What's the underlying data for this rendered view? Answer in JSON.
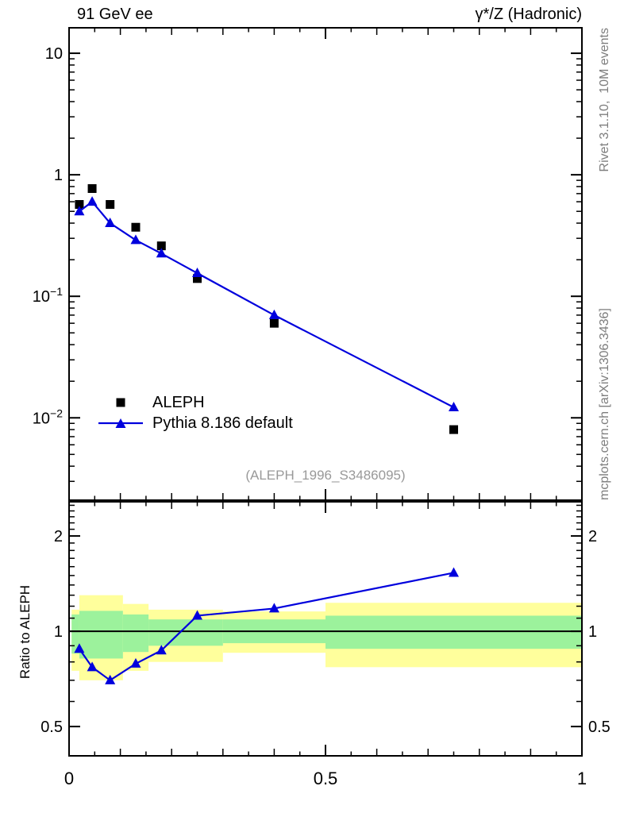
{
  "header": {
    "left_title": "91 GeV ee",
    "right_title": "γ*/Z (Hadronic)"
  },
  "side_notes": {
    "top": "Rivet 3.1.10,  10M events",
    "bottom": "mcplots.cern.ch [arXiv:1306.3436]"
  },
  "watermark": "(ALEPH_1996_S3486095)",
  "legend": {
    "items": [
      {
        "label": "ALEPH",
        "marker": "square",
        "color": "#000000"
      },
      {
        "label": "Pythia 8.186 default",
        "marker": "line-triangle",
        "color": "#0000dd"
      }
    ]
  },
  "ratio_panel": {
    "ylabel": "Ratio to ALEPH"
  },
  "colors": {
    "data": "#000000",
    "mc": "#0000dd",
    "band_outer": "#ffff9c",
    "band_inner": "#9cf29c",
    "reference_line": "#000000",
    "watermark": "#999999",
    "side_text": "#7d7d7d"
  },
  "chart_data": [
    {
      "type": "line",
      "panel": "main",
      "title": "91 GeV ee — γ*/Z (Hadronic)",
      "xlabel": "",
      "ylabel": "",
      "xlim": [
        0,
        1
      ],
      "ylim": [
        0.0021,
        16.2
      ],
      "yscale": "log",
      "grid": false,
      "legend_position": "lower-left",
      "x": [
        0.02,
        0.045,
        0.08,
        0.13,
        0.18,
        0.25,
        0.4,
        0.75
      ],
      "series": [
        {
          "name": "ALEPH",
          "marker": "square",
          "color": "#000000",
          "line": false,
          "values": [
            0.57,
            0.77,
            0.57,
            0.37,
            0.26,
            0.14,
            0.06,
            0.008
          ]
        },
        {
          "name": "Pythia 8.186 default",
          "marker": "triangle",
          "color": "#0000dd",
          "line": true,
          "values": [
            0.5,
            0.6,
            0.4,
            0.29,
            0.225,
            0.155,
            0.07,
            0.0122
          ]
        }
      ],
      "yticks_labeled": [
        10,
        1,
        0.1,
        0.01
      ],
      "xticks_labeled": [
        0,
        0.5,
        1
      ],
      "xtick_minor_step": 0.05
    },
    {
      "type": "ratio",
      "panel": "ratio",
      "ylabel": "Ratio to ALEPH",
      "xlim": [
        0,
        1
      ],
      "ylim": [
        0.404,
        2.565
      ],
      "yscale": "log",
      "reference_line": 1.0,
      "x": [
        0.02,
        0.045,
        0.08,
        0.13,
        0.18,
        0.25,
        0.4,
        0.75
      ],
      "series": [
        {
          "name": "Pythia 8.186 default / ALEPH",
          "marker": "triangle",
          "color": "#0000dd",
          "line": true,
          "values": [
            0.88,
            0.77,
            0.7,
            0.79,
            0.87,
            1.12,
            1.18,
            1.53
          ]
        }
      ],
      "bands": [
        {
          "x": [
            0.005,
            0.02
          ],
          "outer": [
            0.75,
            1.17
          ],
          "inner": [
            0.85,
            1.13
          ]
        },
        {
          "x": [
            0.02,
            0.105
          ],
          "outer": [
            0.7,
            1.3
          ],
          "inner": [
            0.82,
            1.16
          ]
        },
        {
          "x": [
            0.105,
            0.155
          ],
          "outer": [
            0.75,
            1.22
          ],
          "inner": [
            0.86,
            1.13
          ]
        },
        {
          "x": [
            0.155,
            0.3
          ],
          "outer": [
            0.8,
            1.17
          ],
          "inner": [
            0.9,
            1.09
          ]
        },
        {
          "x": [
            0.3,
            0.5
          ],
          "outer": [
            0.855,
            1.155
          ],
          "inner": [
            0.917,
            1.09
          ]
        },
        {
          "x": [
            0.5,
            1.0
          ],
          "outer": [
            0.77,
            1.23
          ],
          "inner": [
            0.88,
            1.12
          ]
        }
      ],
      "yticks_labeled": [
        2,
        1,
        0.5
      ],
      "ytick_minor_step": 0.1,
      "xticks_labeled": [
        0,
        0.5,
        1
      ],
      "xtick_minor_step": 0.05
    }
  ]
}
